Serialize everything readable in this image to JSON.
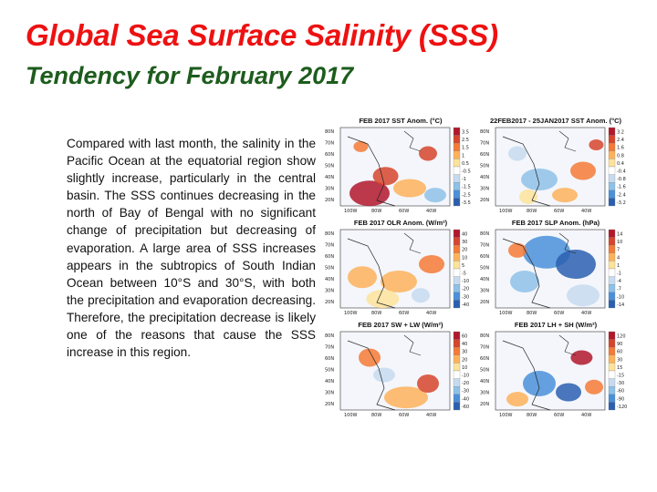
{
  "slide": {
    "title": "Global Sea Surface Salinity (SSS)",
    "subtitle": "Tendency for February 2017",
    "body": "Compared with last month, the salinity in the Pacific Ocean at the equatorial region show slightly increase, particularly in the central basin. The SSS continues decreasing in the north of Bay of Bengal with no significant change of precipitation but decreasing of evaporation. A large area of SSS increases appears in the subtropics of South Indian Ocean between 10°S and 30°S, with both the precipitation and evaporation decreasing. Therefore, the precipitation decrease is likely one of the reasons that cause the SSS increase in this region."
  },
  "panels": [
    {
      "title": "FEB 2017 SST Anom. (°C)",
      "scale": [
        "3.5",
        "2.5",
        "1.5",
        "1",
        "0.5",
        "-0.5",
        "-1",
        "-1.5",
        "-2.5",
        "-3.5"
      ]
    },
    {
      "title": "22FEB2017 - 25JAN2017 SST Anom. (°C)",
      "scale": [
        "3.2",
        "2.4",
        "1.6",
        "0.8",
        "0.4",
        "-0.4",
        "-0.8",
        "-1.6",
        "-2.4",
        "-3.2"
      ]
    },
    {
      "title": "FEB 2017 OLR Anom. (W/m²)",
      "scale": [
        "40",
        "30",
        "20",
        "10",
        "5",
        "-5",
        "-10",
        "-20",
        "-30",
        "-40"
      ]
    },
    {
      "title": "FEB 2017 SLP Anom. (hPa)",
      "scale": [
        "14",
        "10",
        "7",
        "4",
        "1",
        "-1",
        "-4",
        "-7",
        "-10",
        "-14"
      ]
    },
    {
      "title": "FEB 2017 SW + LW (W/m²)",
      "scale": [
        "60",
        "40",
        "30",
        "20",
        "10",
        "-10",
        "-20",
        "-30",
        "-40",
        "-60"
      ]
    },
    {
      "title": "FEB 2017 LH + SH (W/m²)",
      "scale": [
        "120",
        "90",
        "60",
        "30",
        "15",
        "-15",
        "-30",
        "-60",
        "-90",
        "-120"
      ]
    }
  ],
  "map_axes": {
    "lat_labels": [
      "80N",
      "70N",
      "60N",
      "50N",
      "40N",
      "30N",
      "20N"
    ],
    "lon_labels": [
      "100W",
      "80W",
      "60W",
      "40W"
    ]
  },
  "colors": {
    "title": "#ee1111",
    "subtitle": "#1d5c1d",
    "scale": [
      "#b2182b",
      "#d6452d",
      "#f47a36",
      "#fdb25a",
      "#fde39a",
      "#ffffff",
      "#c6dbef",
      "#8ec1e8",
      "#4a90d9",
      "#2a5fb0"
    ]
  }
}
